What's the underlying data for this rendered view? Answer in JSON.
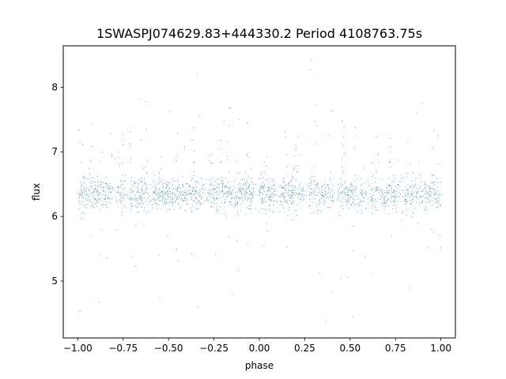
{
  "chart_data": {
    "type": "scatter",
    "title": "1SWASPJ074629.83+444330.2 Period 4108763.75s",
    "xlabel": "phase",
    "ylabel": "flux",
    "xlim": [
      -1.08,
      1.08
    ],
    "ylim": [
      4.12,
      8.64
    ],
    "x_ticks": [
      -1.0,
      -0.75,
      -0.5,
      -0.25,
      0.0,
      0.25,
      0.5,
      0.75,
      1.0
    ],
    "x_tick_labels": [
      "−1.00",
      "−0.75",
      "−0.50",
      "−0.25",
      "0.00",
      "0.25",
      "0.50",
      "0.75",
      "1.00"
    ],
    "y_ticks": [
      5,
      6,
      7,
      8
    ],
    "y_tick_labels": [
      "5",
      "6",
      "7",
      "8"
    ],
    "grid": false,
    "marker_color": "#1f77b4",
    "series": [
      {
        "x_range": [
          -1.0,
          1.0
        ],
        "core_flux_range": [
          5.9,
          6.75
        ],
        "median_flux": 6.35,
        "outlier_flux_range": [
          4.3,
          8.45
        ],
        "symmetric_about_phase": 0.0,
        "bright_column_phases": [
          -0.98,
          -0.93,
          -0.87,
          -0.81,
          -0.76,
          -0.71,
          -0.63,
          -0.55,
          -0.45,
          -0.37,
          -0.27,
          -0.22,
          -0.17,
          -0.12,
          -0.06,
          0.03,
          0.09,
          0.14,
          0.2,
          0.3,
          0.39,
          0.46,
          0.53,
          0.58,
          0.65,
          0.72,
          0.77,
          0.82,
          0.88,
          0.95,
          0.99
        ],
        "gap_phases": [
          -0.8,
          -0.73,
          -0.6,
          -0.3,
          -0.02,
          0.1,
          0.26,
          0.42,
          0.6,
          0.66
        ]
      }
    ]
  }
}
